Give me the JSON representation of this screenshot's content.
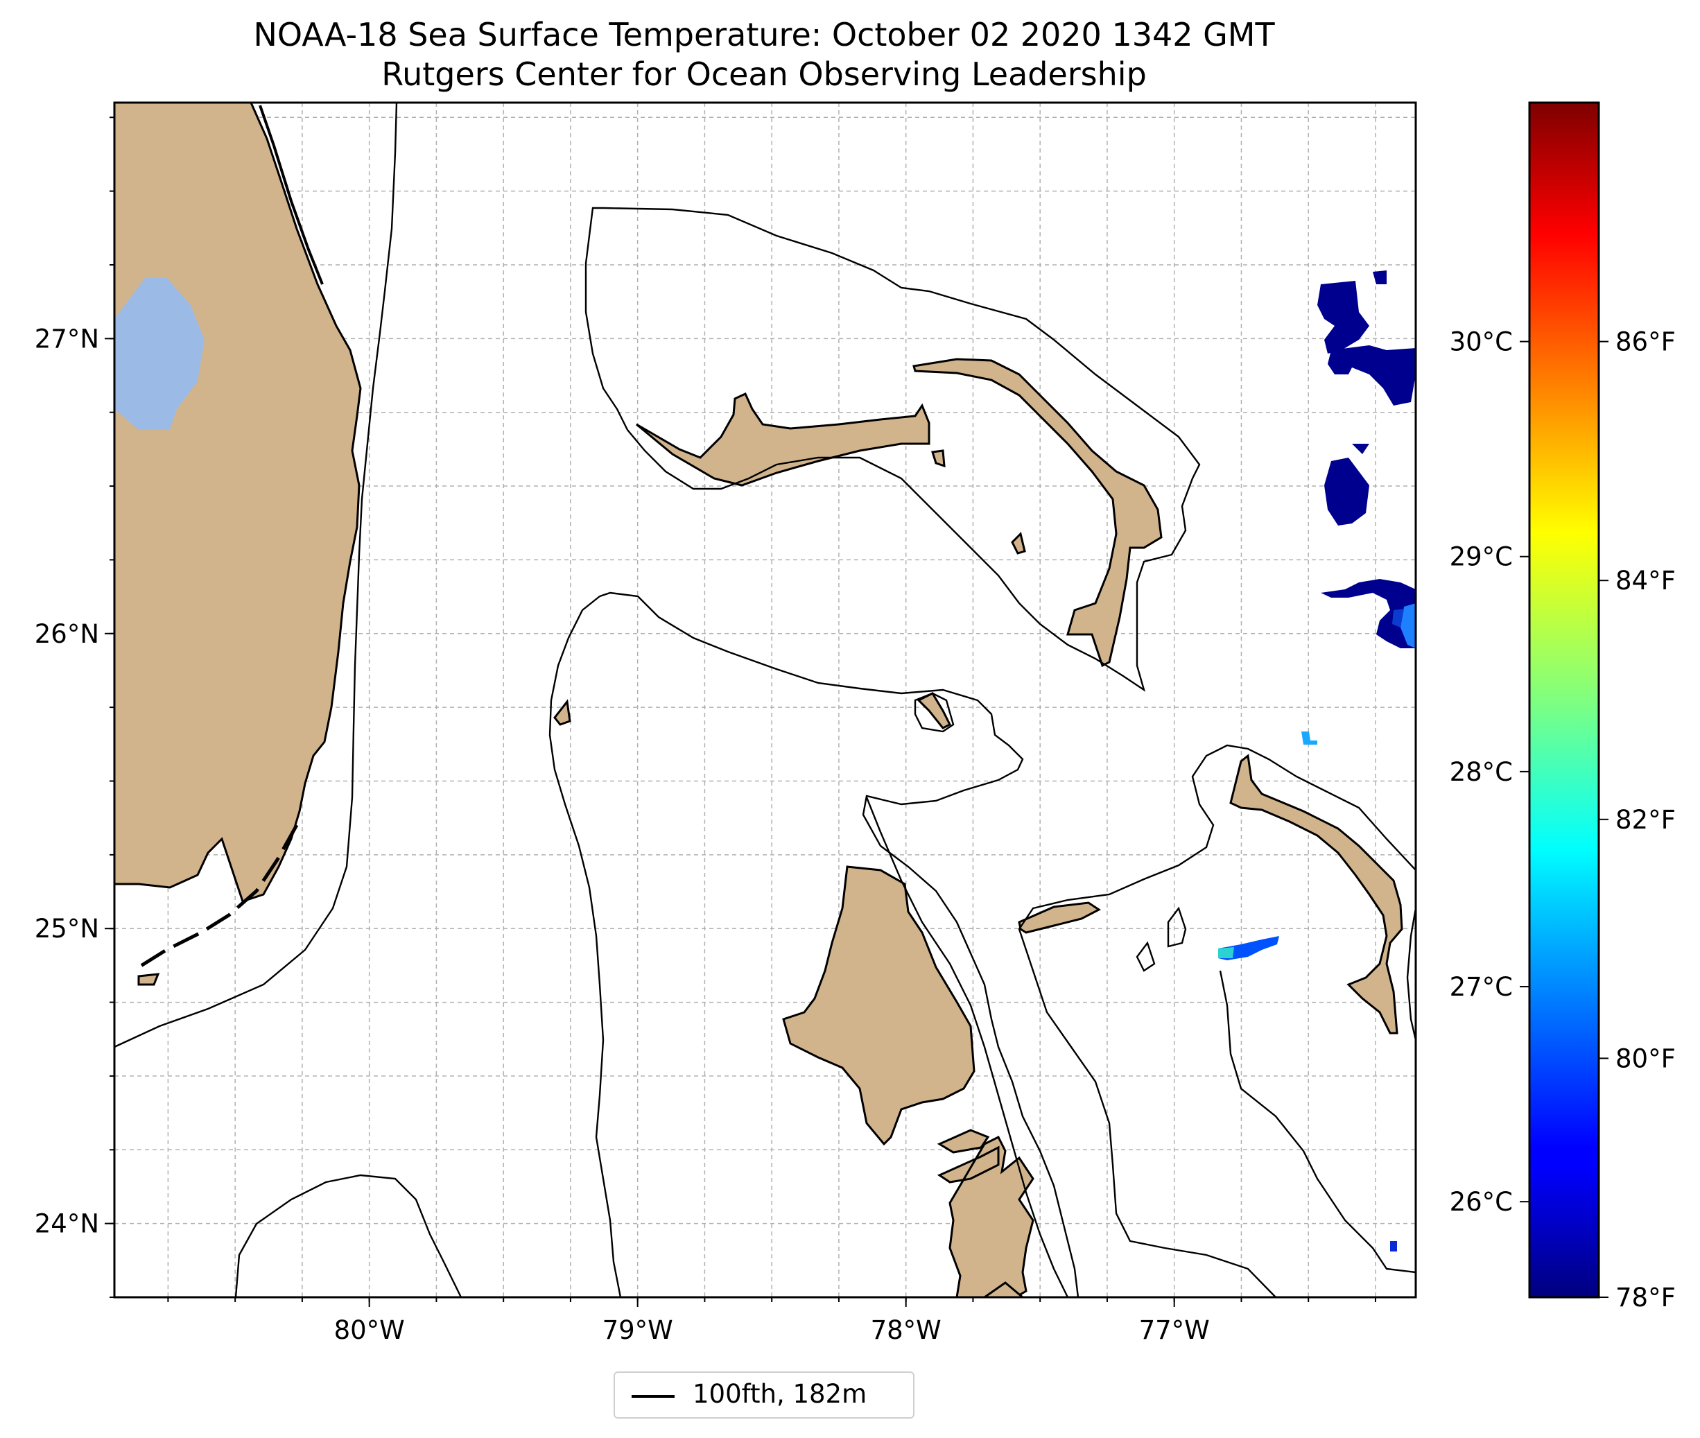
{
  "title": {
    "line1": "NOAA-18 Sea Surface Temperature: October 02 2020 1342 GMT",
    "line2": "Rutgers Center for Ocean Observing Leadership"
  },
  "map": {
    "lon_range": [
      -80.95,
      -76.1
    ],
    "lat_range": [
      23.75,
      27.8
    ],
    "grid": true,
    "lon_ticks": [
      {
        "value": -80,
        "label": "80°W"
      },
      {
        "value": -79,
        "label": "79°W"
      },
      {
        "value": -78,
        "label": "78°W"
      },
      {
        "value": -77,
        "label": "77°W"
      }
    ],
    "lat_ticks": [
      {
        "value": 27,
        "label": "27°N"
      },
      {
        "value": 26,
        "label": "26°N"
      },
      {
        "value": 25,
        "label": "25°N"
      },
      {
        "value": 24,
        "label": "24°N"
      }
    ],
    "colors": {
      "land": "#d2b48c",
      "lake": "#9bbbe6",
      "isobath": "#000000",
      "grid": "#b0b0b0"
    }
  },
  "colorbar": {
    "colormap": "jet",
    "celsius_ticks": [
      {
        "value": 26,
        "label": "26°C"
      },
      {
        "value": 27,
        "label": "27°C"
      },
      {
        "value": 28,
        "label": "28°C"
      },
      {
        "value": 29,
        "label": "29°C"
      },
      {
        "value": 30,
        "label": "30°C"
      }
    ],
    "fahrenheit_ticks": [
      {
        "value": 78,
        "label": "78°F"
      },
      {
        "value": 80,
        "label": "80°F"
      },
      {
        "value": 82,
        "label": "82°F"
      },
      {
        "value": 84,
        "label": "84°F"
      },
      {
        "value": 86,
        "label": "86°F"
      }
    ],
    "range_f": [
      78,
      88
    ]
  },
  "legend": {
    "label": "100fth, 182m",
    "placement": "bottom-center"
  }
}
